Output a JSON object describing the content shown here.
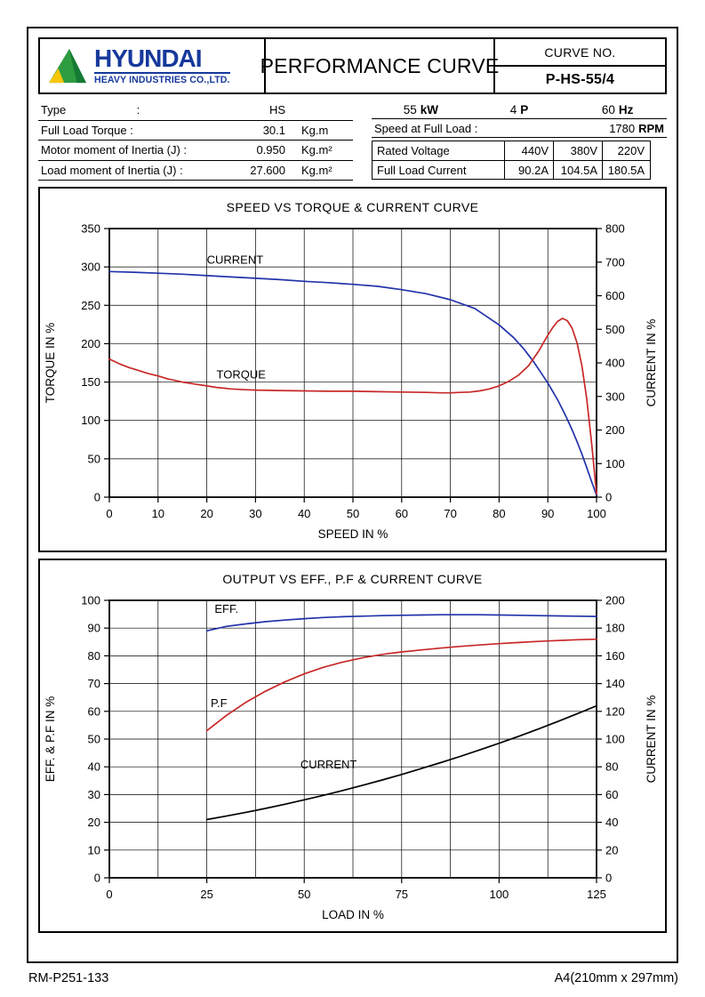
{
  "header": {
    "brand": "HYUNDAI",
    "brand_subtitle": "HEAVY INDUSTRIES CO.,LTD.",
    "title": "PERFORMANCE CURVE",
    "curve_no_label": "CURVE NO.",
    "curve_no_value": "P-HS-55/4"
  },
  "specs_left": {
    "rows": [
      {
        "label": "Type                      :",
        "value": "HS",
        "unit": ""
      },
      {
        "label": "Full Load Torque :",
        "value": "30.1",
        "unit": "Kg.m"
      },
      {
        "label": "Motor moment of Inertia (J) :",
        "value": "0.950",
        "unit": "Kg.m²"
      },
      {
        "label": "Load moment of Inertia (J) :",
        "value": "27.600",
        "unit": "Kg.m²"
      }
    ]
  },
  "specs_right": {
    "power": [
      {
        "num": "55",
        "unit": "kW"
      },
      {
        "num": "4",
        "unit": "P"
      },
      {
        "num": "60",
        "unit": "Hz"
      }
    ],
    "speed_label": "Speed at Full Load :",
    "speed_num": "1780",
    "speed_unit": "RPM",
    "table": {
      "rows": [
        {
          "label": "Rated Voltage",
          "values": [
            "440V",
            "380V",
            "220V"
          ]
        },
        {
          "label": "Full Load Current",
          "values": [
            "90.2A",
            "104.5A",
            "180.5A"
          ]
        }
      ]
    }
  },
  "chart_data": [
    {
      "type": "line",
      "title": "SPEED VS TORQUE & CURRENT CURVE",
      "xlabel": "SPEED IN %",
      "ylabel_left": "TORQUE IN %",
      "ylabel_right": "CURRENT IN %",
      "xlim": [
        0,
        100
      ],
      "xgrid_step": 10,
      "xlabel_step": 10,
      "ylim_left": [
        0,
        350
      ],
      "ygrid_step": 50,
      "ylabel_step_left": 50,
      "ylim_right": [
        0,
        800
      ],
      "ylabel_step_right": 100,
      "grid": true,
      "series": [
        {
          "name": "CURRENT",
          "axis": "right",
          "color": "#2233aa",
          "label": {
            "text": "CURRENT",
            "x": 20,
            "y": 304
          },
          "points": [
            [
              0,
              672
            ],
            [
              5,
              670
            ],
            [
              10,
              667
            ],
            [
              15,
              664
            ],
            [
              20,
              660
            ],
            [
              25,
              656
            ],
            [
              30,
              652
            ],
            [
              35,
              648
            ],
            [
              40,
              643
            ],
            [
              45,
              639
            ],
            [
              50,
              634
            ],
            [
              55,
              628
            ],
            [
              60,
              618
            ],
            [
              65,
              606
            ],
            [
              70,
              588
            ],
            [
              75,
              562
            ],
            [
              80,
              513
            ],
            [
              83,
              475
            ],
            [
              85,
              443
            ],
            [
              87,
              405
            ],
            [
              89,
              362
            ],
            [
              90,
              340
            ],
            [
              91,
              315
            ],
            [
              92,
              290
            ],
            [
              93,
              262
            ],
            [
              94,
              232
            ],
            [
              95,
              200
            ],
            [
              96,
              165
            ],
            [
              97,
              128
            ],
            [
              98,
              88
            ],
            [
              99,
              46
            ],
            [
              100,
              6
            ]
          ]
        },
        {
          "name": "TORQUE",
          "axis": "left",
          "color": "#c82828",
          "label": {
            "text": "TORQUE",
            "x": 22,
            "y": 155
          },
          "points": [
            [
              0,
              180
            ],
            [
              2,
              174
            ],
            [
              4,
              169
            ],
            [
              6,
              165
            ],
            [
              8,
              161
            ],
            [
              10,
              158
            ],
            [
              12,
              154
            ],
            [
              15,
              150
            ],
            [
              18,
              147
            ],
            [
              20,
              145
            ],
            [
              22,
              143
            ],
            [
              25,
              141
            ],
            [
              28,
              140
            ],
            [
              30,
              139.5
            ],
            [
              35,
              139
            ],
            [
              40,
              138.5
            ],
            [
              45,
              138
            ],
            [
              50,
              138
            ],
            [
              55,
              137.5
            ],
            [
              60,
              137
            ],
            [
              65,
              136.5
            ],
            [
              68,
              136
            ],
            [
              70,
              136
            ],
            [
              72,
              136.5
            ],
            [
              74,
              137
            ],
            [
              76,
              138.5
            ],
            [
              78,
              141
            ],
            [
              80,
              145
            ],
            [
              82,
              151
            ],
            [
              84,
              159
            ],
            [
              86,
              171
            ],
            [
              88,
              189
            ],
            [
              89,
              200
            ],
            [
              90,
              211
            ],
            [
              91,
              221
            ],
            [
              92,
              229
            ],
            [
              93,
              233
            ],
            [
              94,
              230
            ],
            [
              95,
              220
            ],
            [
              96,
              201
            ],
            [
              97,
              171
            ],
            [
              98,
              128
            ],
            [
              99,
              70
            ],
            [
              100,
              4
            ]
          ]
        }
      ]
    },
    {
      "type": "line",
      "title": "OUTPUT VS EFF., P.F & CURRENT CURVE",
      "xlabel": "LOAD IN %",
      "ylabel_left": "EFF. & P.F IN %",
      "ylabel_right": "CURRENT IN %",
      "xlim": [
        0,
        125
      ],
      "xgrid_step": 12.5,
      "xlabel_step": 25,
      "ylim_left": [
        0,
        100
      ],
      "ygrid_step": 10,
      "ylabel_step_left": 10,
      "ylim_right": [
        0,
        200
      ],
      "ylabel_step_right": 20,
      "grid": true,
      "series": [
        {
          "name": "EFF.",
          "axis": "left",
          "color": "#2233aa",
          "label": {
            "text": "EFF.",
            "x": 27,
            "y": 95.5
          },
          "points": [
            [
              25,
              89
            ],
            [
              30,
              90.6
            ],
            [
              35,
              91.5
            ],
            [
              40,
              92.3
            ],
            [
              45,
              92.9
            ],
            [
              50,
              93.4
            ],
            [
              55,
              93.8
            ],
            [
              60,
              94.1
            ],
            [
              65,
              94.3
            ],
            [
              70,
              94.5
            ],
            [
              75,
              94.6
            ],
            [
              80,
              94.7
            ],
            [
              85,
              94.8
            ],
            [
              90,
              94.8
            ],
            [
              95,
              94.8
            ],
            [
              100,
              94.7
            ],
            [
              105,
              94.6
            ],
            [
              110,
              94.5
            ],
            [
              115,
              94.4
            ],
            [
              120,
              94.3
            ],
            [
              125,
              94.2
            ]
          ]
        },
        {
          "name": "P.F",
          "axis": "left",
          "color": "#c82828",
          "label": {
            "text": "P.F",
            "x": 26,
            "y": 61.5
          },
          "points": [
            [
              25,
              53
            ],
            [
              30,
              58.5
            ],
            [
              35,
              63.2
            ],
            [
              40,
              67.2
            ],
            [
              45,
              70.6
            ],
            [
              50,
              73.5
            ],
            [
              55,
              75.9
            ],
            [
              60,
              77.8
            ],
            [
              65,
              79.3
            ],
            [
              70,
              80.5
            ],
            [
              75,
              81.4
            ],
            [
              80,
              82.1
            ],
            [
              85,
              82.8
            ],
            [
              90,
              83.4
            ],
            [
              95,
              83.9
            ],
            [
              100,
              84.4
            ],
            [
              105,
              84.8
            ],
            [
              110,
              85.2
            ],
            [
              115,
              85.5
            ],
            [
              120,
              85.8
            ],
            [
              125,
              86
            ]
          ]
        },
        {
          "name": "CURRENT",
          "axis": "right",
          "color": "#000000",
          "label": {
            "text": "CURRENT",
            "x": 49,
            "y": 39.5
          },
          "points": [
            [
              25,
              42
            ],
            [
              30,
              44.5
            ],
            [
              35,
              47.2
            ],
            [
              40,
              50
            ],
            [
              45,
              53
            ],
            [
              50,
              56.2
            ],
            [
              55,
              59.5
            ],
            [
              60,
              63
            ],
            [
              65,
              66.7
            ],
            [
              70,
              70.5
            ],
            [
              75,
              74.5
            ],
            [
              80,
              78.7
            ],
            [
              85,
              83
            ],
            [
              90,
              87.5
            ],
            [
              95,
              92.2
            ],
            [
              100,
              97
            ],
            [
              105,
              102
            ],
            [
              110,
              107.2
            ],
            [
              115,
              112.6
            ],
            [
              120,
              118.2
            ],
            [
              125,
              124
            ]
          ]
        }
      ]
    }
  ],
  "footer": {
    "left": "RM-P251-133",
    "right": "A4(210mm x 297mm)"
  },
  "colors": {
    "brand_blue": "#16399b",
    "logo_green": "#2e9c41",
    "logo_yellow": "#f6c60a",
    "curve_blue": "#2233aa",
    "curve_red": "#c82828",
    "curve_black": "#000000"
  }
}
